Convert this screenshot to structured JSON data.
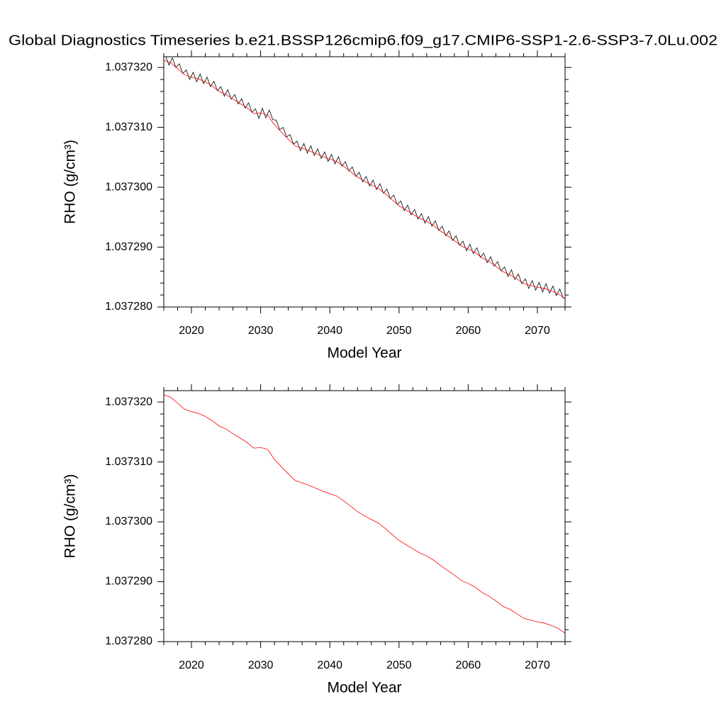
{
  "chart_data": [
    {
      "type": "line",
      "title": "Global Diagnostics Timeseries b.e21.BSSP126cmip6.f09_g17.CMIP6-SSP1-2.6-SSP3-7.0Lu.002",
      "xlabel": "Model Year",
      "ylabel": "RHO (g/cm³)",
      "xlim": [
        2016,
        2074
      ],
      "xticks": [
        2020,
        2030,
        2040,
        2050,
        2060,
        2070
      ],
      "ylim": [
        1.03728,
        1.0373218
      ],
      "yticks": [
        {
          "value": 1.03728,
          "label": "1.037280"
        },
        {
          "value": 1.03729,
          "label": "1.037290"
        },
        {
          "value": 1.0373,
          "label": "1.037300"
        },
        {
          "value": 1.03731,
          "label": "1.037310"
        },
        {
          "value": 1.03732,
          "label": "1.037320"
        }
      ],
      "series": [
        {
          "color": "#000000",
          "x": [
            2016.25,
            2016.75,
            2017.25,
            2017.75,
            2018.25,
            2018.75,
            2019.25,
            2019.75,
            2020.25,
            2020.75,
            2021.25,
            2021.75,
            2022.25,
            2022.75,
            2023.25,
            2023.75,
            2024.25,
            2024.75,
            2025.25,
            2025.75,
            2026.25,
            2026.75,
            2027.25,
            2027.75,
            2028.25,
            2028.75,
            2029.25,
            2029.75,
            2030.25,
            2030.75,
            2031.25,
            2031.75,
            2032.25,
            2032.75,
            2033.25,
            2033.75,
            2034.25,
            2034.75,
            2035.25,
            2035.75,
            2036.25,
            2036.75,
            2037.25,
            2037.75,
            2038.25,
            2038.75,
            2039.25,
            2039.75,
            2040.25,
            2040.75,
            2041.25,
            2041.75,
            2042.25,
            2042.75,
            2043.25,
            2043.75,
            2044.25,
            2044.75,
            2045.25,
            2045.75,
            2046.25,
            2046.75,
            2047.25,
            2047.75,
            2048.25,
            2048.75,
            2049.25,
            2049.75,
            2050.25,
            2050.75,
            2051.25,
            2051.75,
            2052.25,
            2052.75,
            2053.25,
            2053.75,
            2054.25,
            2054.75,
            2055.25,
            2055.75,
            2056.25,
            2056.75,
            2057.25,
            2057.75,
            2058.25,
            2058.75,
            2059.25,
            2059.75,
            2060.25,
            2060.75,
            2061.25,
            2061.75,
            2062.25,
            2062.75,
            2063.25,
            2063.75,
            2064.25,
            2064.75,
            2065.25,
            2065.75,
            2066.25,
            2066.75,
            2067.25,
            2067.75,
            2068.25,
            2068.75,
            2069.25,
            2069.75,
            2070.25,
            2070.75,
            2071.25,
            2071.75,
            2072.25,
            2072.75,
            2073.25,
            2073.75
          ],
          "values": [
            1.037322,
            1.0373204,
            1.0373216,
            1.03732,
            1.0373206,
            1.037319,
            1.0373196,
            1.037318,
            1.0373192,
            1.0373176,
            1.0373189,
            1.0373173,
            1.0373184,
            1.0373168,
            1.0373177,
            1.0373161,
            1.0373168,
            1.0373152,
            1.0373163,
            1.0373147,
            1.0373155,
            1.0373139,
            1.0373148,
            1.0373132,
            1.0373141,
            1.0373125,
            1.0373131,
            1.0373115,
            1.0373132,
            1.0373116,
            1.0373129,
            1.0373113,
            1.0373112,
            1.0373096,
            1.03731,
            1.0373084,
            1.0373088,
            1.0373072,
            1.0373077,
            1.0373061,
            1.0373073,
            1.0373057,
            1.0373069,
            1.0373053,
            1.0373064,
            1.0373048,
            1.0373059,
            1.0373043,
            1.0373055,
            1.0373039,
            1.0373051,
            1.0373035,
            1.0373043,
            1.0373027,
            1.0373034,
            1.0373018,
            1.0373025,
            1.0373009,
            1.0373018,
            1.0373002,
            1.0373012,
            1.0372996,
            1.0373006,
            1.037299,
            1.0372997,
            1.0372981,
            1.0372987,
            1.0372971,
            1.0372977,
            1.0372961,
            1.037297,
            1.0372954,
            1.0372963,
            1.0372947,
            1.0372956,
            1.037294,
            1.0372951,
            1.0372935,
            1.0372944,
            1.0372928,
            1.0372935,
            1.0372919,
            1.0372927,
            1.0372911,
            1.0372919,
            1.0372903,
            1.037291,
            1.0372894,
            1.0372905,
            1.0372889,
            1.0372899,
            1.0372883,
            1.037289,
            1.0372874,
            1.0372884,
            1.0372868,
            1.0372876,
            1.037286,
            1.0372867,
            1.0372851,
            1.0372862,
            1.0372846,
            1.0372855,
            1.0372839,
            1.0372847,
            1.0372831,
            1.0372844,
            1.0372828,
            1.0372841,
            1.0372825,
            1.0372839,
            1.0372823,
            1.0372835,
            1.0372819,
            1.037283,
            1.0372814
          ]
        },
        {
          "color": "#ff0000",
          "x": [
            2016,
            2017,
            2018,
            2019,
            2020,
            2021,
            2022,
            2023,
            2024,
            2025,
            2026,
            2027,
            2028,
            2029,
            2030,
            2031,
            2032,
            2033,
            2034,
            2035,
            2036,
            2037,
            2038,
            2039,
            2040,
            2041,
            2042,
            2043,
            2044,
            2045,
            2046,
            2047,
            2048,
            2049,
            2050,
            2051,
            2052,
            2053,
            2054,
            2055,
            2056,
            2057,
            2058,
            2059,
            2060,
            2061,
            2062,
            2063,
            2064,
            2065,
            2066,
            2067,
            2068,
            2069,
            2070,
            2071,
            2072,
            2073,
            2074
          ],
          "values": [
            1.0373212,
            1.0373208,
            1.0373198,
            1.0373188,
            1.0373184,
            1.0373181,
            1.0373176,
            1.0373169,
            1.037316,
            1.0373155,
            1.0373147,
            1.037314,
            1.0373133,
            1.0373123,
            1.0373124,
            1.0373121,
            1.0373104,
            1.0373092,
            1.037308,
            1.0373069,
            1.0373065,
            1.0373061,
            1.0373056,
            1.0373051,
            1.0373047,
            1.0373043,
            1.0373035,
            1.0373026,
            1.0373017,
            1.037301,
            1.0373004,
            1.0372998,
            1.0372989,
            1.0372979,
            1.0372969,
            1.0372962,
            1.0372955,
            1.0372948,
            1.0372943,
            1.0372936,
            1.0372927,
            1.0372919,
            1.0372911,
            1.0372902,
            1.0372897,
            1.0372891,
            1.0372882,
            1.0372876,
            1.0372868,
            1.0372859,
            1.0372854,
            1.0372847,
            1.0372839,
            1.0372836,
            1.0372833,
            1.0372831,
            1.0372827,
            1.0372822,
            1.0372814
          ]
        }
      ]
    },
    {
      "type": "line",
      "xlabel": "Model Year",
      "ylabel": "RHO (g/cm³)",
      "xlim": [
        2016,
        2074
      ],
      "xticks": [
        2020,
        2030,
        2040,
        2050,
        2060,
        2070
      ],
      "ylim": [
        1.03728,
        1.0373219
      ],
      "yticks": [
        {
          "value": 1.03728,
          "label": "1.037280"
        },
        {
          "value": 1.03729,
          "label": "1.037290"
        },
        {
          "value": 1.0373,
          "label": "1.037300"
        },
        {
          "value": 1.03731,
          "label": "1.037310"
        },
        {
          "value": 1.03732,
          "label": "1.037320"
        }
      ],
      "series": [
        {
          "color": "#ff0000",
          "x": [
            2016,
            2017,
            2018,
            2019,
            2020,
            2021,
            2022,
            2023,
            2024,
            2025,
            2026,
            2027,
            2028,
            2029,
            2030,
            2031,
            2032,
            2033,
            2034,
            2035,
            2036,
            2037,
            2038,
            2039,
            2040,
            2041,
            2042,
            2043,
            2044,
            2045,
            2046,
            2047,
            2048,
            2049,
            2050,
            2051,
            2052,
            2053,
            2054,
            2055,
            2056,
            2057,
            2058,
            2059,
            2060,
            2061,
            2062,
            2063,
            2064,
            2065,
            2066,
            2067,
            2068,
            2069,
            2070,
            2071,
            2072,
            2073,
            2074
          ],
          "values": [
            1.0373212,
            1.0373208,
            1.0373198,
            1.0373188,
            1.0373184,
            1.0373181,
            1.0373176,
            1.0373169,
            1.037316,
            1.0373155,
            1.0373147,
            1.037314,
            1.0373133,
            1.0373123,
            1.0373124,
            1.0373121,
            1.0373104,
            1.0373092,
            1.037308,
            1.0373069,
            1.0373065,
            1.0373061,
            1.0373056,
            1.0373051,
            1.0373047,
            1.0373043,
            1.0373035,
            1.0373026,
            1.0373017,
            1.037301,
            1.0373004,
            1.0372998,
            1.0372989,
            1.0372979,
            1.0372969,
            1.0372962,
            1.0372955,
            1.0372948,
            1.0372943,
            1.0372936,
            1.0372927,
            1.0372919,
            1.0372911,
            1.0372902,
            1.0372897,
            1.0372891,
            1.0372882,
            1.0372876,
            1.0372868,
            1.0372859,
            1.0372854,
            1.0372847,
            1.0372839,
            1.0372836,
            1.0372833,
            1.0372831,
            1.0372827,
            1.0372822,
            1.0372814
          ]
        }
      ]
    }
  ]
}
